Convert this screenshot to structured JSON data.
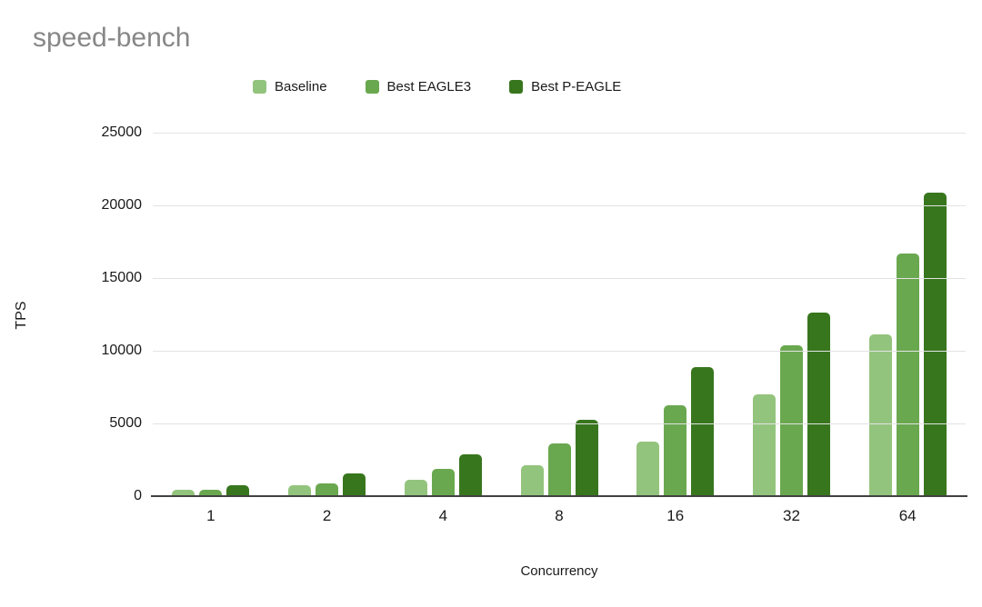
{
  "title": "speed-bench",
  "legend": [
    {
      "label": "Baseline",
      "color": "#93c47d"
    },
    {
      "label": "Best EAGLE3",
      "color": "#6aa84f"
    },
    {
      "label": "Best P-EAGLE",
      "color": "#38761d"
    }
  ],
  "style": {
    "background": "#ffffff",
    "title_color": "#878787",
    "text_color": "#1a1a1a",
    "gridline_color": "#e3e3e3",
    "axis_color": "#424242"
  },
  "chart_data": {
    "type": "bar",
    "title": "speed-bench",
    "xlabel": "Concurrency",
    "ylabel": "TPS",
    "categories": [
      "1",
      "2",
      "4",
      "8",
      "16",
      "32",
      "64"
    ],
    "series": [
      {
        "name": "Baseline",
        "color": "#93c47d",
        "values": [
          450,
          730,
          1150,
          2100,
          3750,
          7000,
          11100
        ]
      },
      {
        "name": "Best EAGLE3",
        "color": "#6aa84f",
        "values": [
          440,
          850,
          1850,
          3600,
          6250,
          10400,
          16700
        ]
      },
      {
        "name": "Best P-EAGLE",
        "color": "#38761d",
        "values": [
          760,
          1550,
          2900,
          5250,
          8850,
          12600,
          20900
        ]
      }
    ],
    "ylim": [
      0,
      25000
    ],
    "yticks": [
      25000,
      20000,
      15000,
      10000,
      5000,
      0
    ],
    "grid": true,
    "legend_position": "top"
  }
}
